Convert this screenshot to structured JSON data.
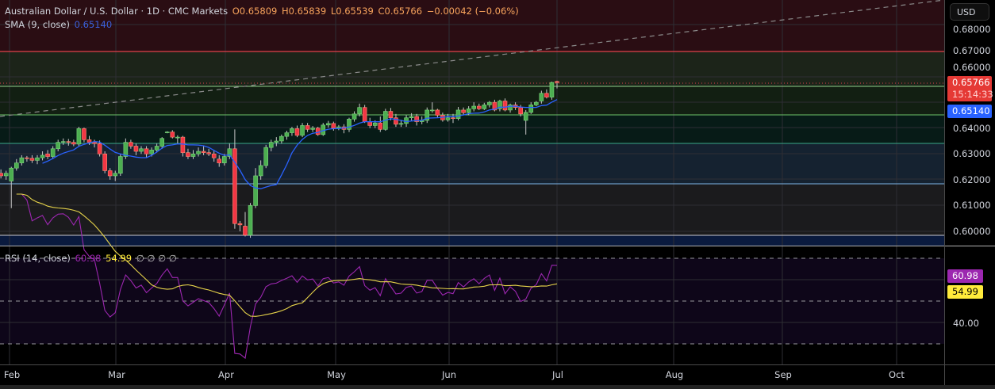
{
  "legend": {
    "symbol": "Australian Dollar / U.S. Dollar · 1D · CMC Markets",
    "open": "O0.65809",
    "high": "H0.65839",
    "low": "L0.65539",
    "close": "C0.65766",
    "change": "−0.00042 (−0.06%)",
    "sma_label": "SMA (9, close)",
    "sma_value": "0.65140",
    "rsi_label": "RSI (14, close)",
    "rsi_value": "60.98",
    "rsi_ma_value": "54.99",
    "rsi_extra": "∅ ∅ ∅ ∅"
  },
  "price_axis": {
    "currency": "USD",
    "ticks": [
      "0.68000",
      "0.67000",
      "0.66000",
      "0.64000",
      "0.63000",
      "0.62000",
      "0.61000",
      "0.60000"
    ],
    "last_price": "0.65766",
    "countdown": "15:14:33",
    "sma_badge": "0.65140"
  },
  "rsi_axis": {
    "ticks": [
      "40.00"
    ],
    "rsi_badge": "60.98",
    "ma_badge": "54.99"
  },
  "time_axis": {
    "labels": [
      "Feb",
      "Mar",
      "Apr",
      "May",
      "Jun",
      "Jul",
      "Aug",
      "Sep",
      "Oct"
    ]
  },
  "colors": {
    "up": "#4caf50",
    "down": "#f23645",
    "sma": "#2962ff",
    "rsi": "#9c27b0",
    "rsi_ma": "#ffeb3b",
    "last_badge": "#e53935",
    "sma_badge": "#2962ff"
  },
  "chart_data": {
    "type": "candlestick",
    "indicators": [
      "SMA 9 close",
      "RSI 14 close",
      "RSI MA"
    ],
    "horizontal_levels": [
      0.67,
      0.6585,
      0.647,
      0.634,
      0.6185,
      0.5985
    ],
    "price_range": [
      0.595,
      0.685
    ],
    "rsi_levels": [
      70,
      50,
      30
    ],
    "candles_ohlc": [
      [
        0.6225,
        0.624,
        0.6205,
        0.6215
      ],
      [
        0.6215,
        0.6235,
        0.62,
        0.6225
      ],
      [
        0.6195,
        0.625,
        0.609,
        0.6245
      ],
      [
        0.6245,
        0.628,
        0.6235,
        0.6265
      ],
      [
        0.6265,
        0.6295,
        0.6255,
        0.6285
      ],
      [
        0.6285,
        0.6292,
        0.627,
        0.6283
      ],
      [
        0.6283,
        0.6295,
        0.6265,
        0.6275
      ],
      [
        0.6275,
        0.6295,
        0.626,
        0.6285
      ],
      [
        0.6285,
        0.631,
        0.6275,
        0.6295
      ],
      [
        0.63,
        0.6315,
        0.628,
        0.629
      ],
      [
        0.629,
        0.633,
        0.628,
        0.632
      ],
      [
        0.632,
        0.6355,
        0.631,
        0.6345
      ],
      [
        0.6345,
        0.636,
        0.6335,
        0.6348
      ],
      [
        0.6348,
        0.6358,
        0.6332,
        0.6345
      ],
      [
        0.6345,
        0.6355,
        0.633,
        0.6338
      ],
      [
        0.6338,
        0.6405,
        0.633,
        0.6398
      ],
      [
        0.6398,
        0.6402,
        0.6345,
        0.6355
      ],
      [
        0.6355,
        0.637,
        0.6335,
        0.6345
      ],
      [
        0.6345,
        0.6355,
        0.6325,
        0.634
      ],
      [
        0.634,
        0.6352,
        0.629,
        0.63
      ],
      [
        0.63,
        0.631,
        0.6225,
        0.6235
      ],
      [
        0.6235,
        0.6245,
        0.62,
        0.6215
      ],
      [
        0.6215,
        0.6235,
        0.6195,
        0.6225
      ],
      [
        0.6225,
        0.63,
        0.6215,
        0.629
      ],
      [
        0.629,
        0.636,
        0.628,
        0.6345
      ],
      [
        0.6345,
        0.6355,
        0.632,
        0.633
      ],
      [
        0.633,
        0.634,
        0.6295,
        0.631
      ],
      [
        0.631,
        0.633,
        0.63,
        0.632
      ],
      [
        0.632,
        0.633,
        0.6285,
        0.63
      ],
      [
        0.63,
        0.6325,
        0.629,
        0.6315
      ],
      [
        0.6315,
        0.634,
        0.6305,
        0.633
      ],
      [
        0.633,
        0.6365,
        0.632,
        0.636
      ],
      [
        0.6385,
        0.6388,
        0.638,
        0.6385
      ],
      [
        0.6385,
        0.6392,
        0.636,
        0.6365
      ],
      [
        0.6365,
        0.6372,
        0.634,
        0.6365
      ],
      [
        0.6365,
        0.637,
        0.629,
        0.6305
      ],
      [
        0.6305,
        0.632,
        0.628,
        0.629
      ],
      [
        0.629,
        0.6315,
        0.628,
        0.63
      ],
      [
        0.63,
        0.6325,
        0.629,
        0.631
      ],
      [
        0.631,
        0.633,
        0.6295,
        0.6305
      ],
      [
        0.6305,
        0.632,
        0.6292,
        0.63
      ],
      [
        0.63,
        0.6312,
        0.627,
        0.6285
      ],
      [
        0.628,
        0.6295,
        0.625,
        0.6265
      ],
      [
        0.6265,
        0.63,
        0.6255,
        0.629
      ],
      [
        0.629,
        0.634,
        0.628,
        0.632
      ],
      [
        0.632,
        0.6395,
        0.601,
        0.603
      ],
      [
        0.603,
        0.604,
        0.6,
        0.6025
      ],
      [
        0.602,
        0.6075,
        0.598,
        0.5985
      ],
      [
        0.5985,
        0.611,
        0.5975,
        0.61
      ],
      [
        0.61,
        0.6245,
        0.609,
        0.6215
      ],
      [
        0.6215,
        0.6275,
        0.62,
        0.6255
      ],
      [
        0.6255,
        0.6335,
        0.6245,
        0.6325
      ],
      [
        0.6325,
        0.6355,
        0.631,
        0.6345
      ],
      [
        0.6345,
        0.6365,
        0.633,
        0.635
      ],
      [
        0.635,
        0.6375,
        0.634,
        0.6368
      ],
      [
        0.6368,
        0.639,
        0.6355,
        0.6382
      ],
      [
        0.6382,
        0.6405,
        0.637,
        0.6398
      ],
      [
        0.6398,
        0.641,
        0.6365,
        0.6372
      ],
      [
        0.6372,
        0.642,
        0.6365,
        0.641
      ],
      [
        0.641,
        0.642,
        0.6385,
        0.6395
      ],
      [
        0.6395,
        0.6408,
        0.6385,
        0.64
      ],
      [
        0.64,
        0.6405,
        0.637,
        0.6375
      ],
      [
        0.6375,
        0.642,
        0.637,
        0.6412
      ],
      [
        0.6412,
        0.6428,
        0.6402,
        0.6418
      ],
      [
        0.6418,
        0.6425,
        0.639,
        0.64
      ],
      [
        0.64,
        0.6412,
        0.6392,
        0.6405
      ],
      [
        0.6405,
        0.6415,
        0.638,
        0.6395
      ],
      [
        0.6395,
        0.644,
        0.6385,
        0.6435
      ],
      [
        0.6435,
        0.6465,
        0.6425,
        0.6455
      ],
      [
        0.6455,
        0.6495,
        0.6445,
        0.648
      ],
      [
        0.648,
        0.649,
        0.642,
        0.6425
      ],
      [
        0.6425,
        0.644,
        0.64,
        0.641
      ],
      [
        0.641,
        0.643,
        0.64,
        0.642
      ],
      [
        0.642,
        0.6445,
        0.6385,
        0.6395
      ],
      [
        0.6395,
        0.6475,
        0.639,
        0.6465
      ],
      [
        0.6465,
        0.6478,
        0.643,
        0.644
      ],
      [
        0.644,
        0.6455,
        0.6405,
        0.6415
      ],
      [
        0.6415,
        0.6432,
        0.6405,
        0.6418
      ],
      [
        0.6418,
        0.645,
        0.6405,
        0.644
      ],
      [
        0.644,
        0.6458,
        0.643,
        0.6445
      ],
      [
        0.6445,
        0.6455,
        0.641,
        0.6425
      ],
      [
        0.6425,
        0.6445,
        0.6415,
        0.643
      ],
      [
        0.643,
        0.648,
        0.642,
        0.647
      ],
      [
        0.647,
        0.65,
        0.646,
        0.647
      ],
      [
        0.647,
        0.6475,
        0.644,
        0.645
      ],
      [
        0.645,
        0.646,
        0.6425,
        0.6432
      ],
      [
        0.6432,
        0.6455,
        0.6425,
        0.644
      ],
      [
        0.644,
        0.6455,
        0.642,
        0.6437
      ],
      [
        0.6437,
        0.6482,
        0.643,
        0.647
      ],
      [
        0.647,
        0.648,
        0.645,
        0.646
      ],
      [
        0.646,
        0.6485,
        0.645,
        0.6475
      ],
      [
        0.6475,
        0.65,
        0.6465,
        0.6485
      ],
      [
        0.6485,
        0.6495,
        0.647,
        0.6475
      ],
      [
        0.6475,
        0.6498,
        0.647,
        0.649
      ],
      [
        0.649,
        0.6505,
        0.648,
        0.65
      ],
      [
        0.65,
        0.651,
        0.6465,
        0.647
      ],
      [
        0.6475,
        0.651,
        0.6465,
        0.6505
      ],
      [
        0.6505,
        0.6515,
        0.6465,
        0.647
      ],
      [
        0.647,
        0.6495,
        0.646,
        0.649
      ],
      [
        0.649,
        0.65,
        0.647,
        0.648
      ],
      [
        0.648,
        0.649,
        0.6445,
        0.6455
      ],
      [
        0.643,
        0.647,
        0.6375,
        0.6461
      ],
      [
        0.6461,
        0.65,
        0.6455,
        0.649
      ],
      [
        0.649,
        0.6505,
        0.6485,
        0.65
      ],
      [
        0.6505,
        0.6545,
        0.6495,
        0.6535
      ],
      [
        0.6535,
        0.655,
        0.6515,
        0.652
      ],
      [
        0.652,
        0.658,
        0.651,
        0.6577
      ],
      [
        0.65809,
        0.65839,
        0.65539,
        0.65766
      ]
    ]
  }
}
